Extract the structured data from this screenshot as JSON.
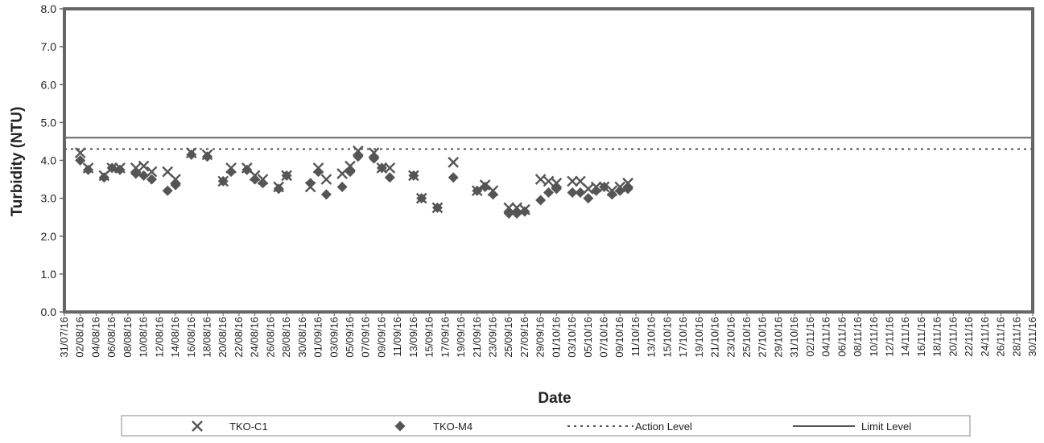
{
  "chart_data": {
    "type": "scatter",
    "xlabel": "Date",
    "ylabel": "Turbidity (NTU)",
    "ylim": [
      0,
      8
    ],
    "yticks": [
      "0.0",
      "1.0",
      "2.0",
      "3.0",
      "4.0",
      "5.0",
      "6.0",
      "7.0",
      "8.0"
    ],
    "x_tick_labels": [
      "31/07/16",
      "02/08/16",
      "04/08/16",
      "06/08/16",
      "08/08/16",
      "10/08/16",
      "12/08/16",
      "14/08/16",
      "16/08/16",
      "18/08/16",
      "20/08/16",
      "22/08/16",
      "24/08/16",
      "26/08/16",
      "28/08/16",
      "30/08/16",
      "01/09/16",
      "03/09/16",
      "05/09/16",
      "07/09/16",
      "09/09/16",
      "11/09/16",
      "13/09/16",
      "15/09/16",
      "17/09/16",
      "19/09/16",
      "21/09/16",
      "23/09/16",
      "25/09/16",
      "27/09/16",
      "29/09/16",
      "01/10/16",
      "03/10/16",
      "05/10/16",
      "07/10/16",
      "09/10/16",
      "11/10/16",
      "13/10/16",
      "15/10/16",
      "17/10/16",
      "19/10/16",
      "21/10/16",
      "23/10/16",
      "25/10/16",
      "27/10/16",
      "29/10/16",
      "31/10/16",
      "02/11/16",
      "04/11/16",
      "06/11/16",
      "08/11/16",
      "10/11/16",
      "12/11/16",
      "14/11/16",
      "16/11/16",
      "18/11/16",
      "20/11/16",
      "22/11/16",
      "24/11/16",
      "26/11/16",
      "28/11/16",
      "30/11/16"
    ],
    "grid": false,
    "legend_position": "bottom",
    "action_level": 4.3,
    "limit_level": 4.6,
    "series": [
      {
        "name": "TKO-C1",
        "marker": "x",
        "color": "#555555",
        "points": [
          {
            "x": "02/08/16",
            "y": 4.2
          },
          {
            "x": "03/08/16",
            "y": 3.8
          },
          {
            "x": "05/08/16",
            "y": 3.6
          },
          {
            "x": "06/08/16",
            "y": 3.8
          },
          {
            "x": "07/08/16",
            "y": 3.8
          },
          {
            "x": "09/08/16",
            "y": 3.8
          },
          {
            "x": "10/08/16",
            "y": 3.85
          },
          {
            "x": "11/08/16",
            "y": 3.7
          },
          {
            "x": "13/08/16",
            "y": 3.7
          },
          {
            "x": "14/08/16",
            "y": 3.5
          },
          {
            "x": "16/08/16",
            "y": 4.2
          },
          {
            "x": "18/08/16",
            "y": 4.15
          },
          {
            "x": "20/08/16",
            "y": 3.45
          },
          {
            "x": "21/08/16",
            "y": 3.8
          },
          {
            "x": "23/08/16",
            "y": 3.8
          },
          {
            "x": "24/08/16",
            "y": 3.6
          },
          {
            "x": "25/08/16",
            "y": 3.5
          },
          {
            "x": "27/08/16",
            "y": 3.3
          },
          {
            "x": "28/08/16",
            "y": 3.6
          },
          {
            "x": "31/08/16",
            "y": 3.3
          },
          {
            "x": "01/09/16",
            "y": 3.8
          },
          {
            "x": "02/09/16",
            "y": 3.5
          },
          {
            "x": "04/09/16",
            "y": 3.65
          },
          {
            "x": "05/09/16",
            "y": 3.85
          },
          {
            "x": "06/09/16",
            "y": 4.25
          },
          {
            "x": "08/09/16",
            "y": 4.2
          },
          {
            "x": "09/09/16",
            "y": 3.8
          },
          {
            "x": "10/09/16",
            "y": 3.8
          },
          {
            "x": "13/09/16",
            "y": 3.6
          },
          {
            "x": "14/09/16",
            "y": 3.0
          },
          {
            "x": "16/09/16",
            "y": 2.75
          },
          {
            "x": "18/09/16",
            "y": 3.95
          },
          {
            "x": "21/09/16",
            "y": 3.2
          },
          {
            "x": "22/09/16",
            "y": 3.35
          },
          {
            "x": "23/09/16",
            "y": 3.2
          },
          {
            "x": "25/09/16",
            "y": 2.75
          },
          {
            "x": "26/09/16",
            "y": 2.75
          },
          {
            "x": "27/09/16",
            "y": 2.7
          },
          {
            "x": "29/09/16",
            "y": 3.5
          },
          {
            "x": "30/09/16",
            "y": 3.45
          },
          {
            "x": "01/10/16",
            "y": 3.4
          },
          {
            "x": "03/10/16",
            "y": 3.45
          },
          {
            "x": "04/10/16",
            "y": 3.45
          },
          {
            "x": "05/10/16",
            "y": 3.25
          },
          {
            "x": "06/10/16",
            "y": 3.3
          },
          {
            "x": "07/10/16",
            "y": 3.3
          },
          {
            "x": "08/10/16",
            "y": 3.2
          },
          {
            "x": "09/10/16",
            "y": 3.3
          },
          {
            "x": "10/10/16",
            "y": 3.4
          }
        ]
      },
      {
        "name": "TKO-M4",
        "marker": "diamond",
        "color": "#555555",
        "points": [
          {
            "x": "02/08/16",
            "y": 4.0
          },
          {
            "x": "03/08/16",
            "y": 3.75
          },
          {
            "x": "05/08/16",
            "y": 3.55
          },
          {
            "x": "06/08/16",
            "y": 3.8
          },
          {
            "x": "07/08/16",
            "y": 3.75
          },
          {
            "x": "09/08/16",
            "y": 3.65
          },
          {
            "x": "10/08/16",
            "y": 3.6
          },
          {
            "x": "11/08/16",
            "y": 3.5
          },
          {
            "x": "13/08/16",
            "y": 3.2
          },
          {
            "x": "14/08/16",
            "y": 3.35
          },
          {
            "x": "16/08/16",
            "y": 4.15
          },
          {
            "x": "18/08/16",
            "y": 4.1
          },
          {
            "x": "20/08/16",
            "y": 3.45
          },
          {
            "x": "21/08/16",
            "y": 3.7
          },
          {
            "x": "23/08/16",
            "y": 3.75
          },
          {
            "x": "24/08/16",
            "y": 3.5
          },
          {
            "x": "25/08/16",
            "y": 3.4
          },
          {
            "x": "27/08/16",
            "y": 3.25
          },
          {
            "x": "28/08/16",
            "y": 3.6
          },
          {
            "x": "31/08/16",
            "y": 3.4
          },
          {
            "x": "01/09/16",
            "y": 3.7
          },
          {
            "x": "02/09/16",
            "y": 3.1
          },
          {
            "x": "04/09/16",
            "y": 3.3
          },
          {
            "x": "05/09/16",
            "y": 3.7
          },
          {
            "x": "06/09/16",
            "y": 4.1
          },
          {
            "x": "08/09/16",
            "y": 4.05
          },
          {
            "x": "09/09/16",
            "y": 3.8
          },
          {
            "x": "10/09/16",
            "y": 3.55
          },
          {
            "x": "13/09/16",
            "y": 3.6
          },
          {
            "x": "14/09/16",
            "y": 3.0
          },
          {
            "x": "16/09/16",
            "y": 2.75
          },
          {
            "x": "18/09/16",
            "y": 3.55
          },
          {
            "x": "21/09/16",
            "y": 3.2
          },
          {
            "x": "22/09/16",
            "y": 3.3
          },
          {
            "x": "23/09/16",
            "y": 3.1
          },
          {
            "x": "25/09/16",
            "y": 2.6
          },
          {
            "x": "26/09/16",
            "y": 2.6
          },
          {
            "x": "27/09/16",
            "y": 2.65
          },
          {
            "x": "29/09/16",
            "y": 2.95
          },
          {
            "x": "30/09/16",
            "y": 3.15
          },
          {
            "x": "01/10/16",
            "y": 3.25
          },
          {
            "x": "03/10/16",
            "y": 3.15
          },
          {
            "x": "04/10/16",
            "y": 3.15
          },
          {
            "x": "05/10/16",
            "y": 3.0
          },
          {
            "x": "06/10/16",
            "y": 3.2
          },
          {
            "x": "07/10/16",
            "y": 3.3
          },
          {
            "x": "08/10/16",
            "y": 3.1
          },
          {
            "x": "09/10/16",
            "y": 3.2
          },
          {
            "x": "10/10/16",
            "y": 3.25
          }
        ]
      }
    ],
    "legend": [
      {
        "label": "TKO-C1",
        "symbol": "x"
      },
      {
        "label": "TKO-M4",
        "symbol": "diamond"
      },
      {
        "label": "Action Level",
        "symbol": "dotted-line"
      },
      {
        "label": "Limit Level",
        "symbol": "solid-line"
      }
    ]
  }
}
